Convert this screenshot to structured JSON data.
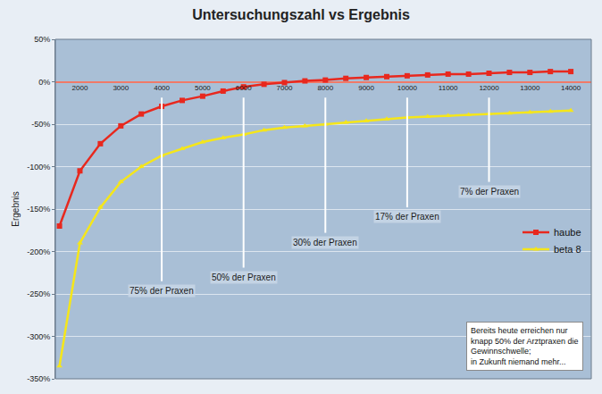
{
  "chart_data": {
    "type": "line",
    "title": "Untersuchungszahl vs Ergebnis",
    "y_label": "Ergebnis",
    "x": [
      1500,
      2000,
      2500,
      3000,
      3500,
      4000,
      4500,
      5000,
      5500,
      6000,
      6500,
      7000,
      7500,
      8000,
      8500,
      9000,
      9500,
      10000,
      10500,
      11000,
      11500,
      12000,
      12500,
      13000,
      13500,
      14000
    ],
    "series": [
      {
        "name": "haube",
        "color": "#e8281e",
        "marker": "square",
        "values": [
          -170,
          -105,
          -73,
          -52,
          -38,
          -29,
          -22,
          -17,
          -11,
          -6,
          -3,
          -1,
          1,
          2,
          4,
          5,
          6,
          7,
          8,
          9,
          9,
          10,
          11,
          11,
          12,
          12
        ]
      },
      {
        "name": "beta 8",
        "color": "#f5e61a",
        "marker": "triangle-up",
        "values": [
          -335,
          -190,
          -148,
          -118,
          -100,
          -87,
          -79,
          -71,
          -66,
          -62,
          -57,
          -54,
          -52,
          -50,
          -48,
          -46,
          -44,
          -42,
          -41,
          -40,
          -39,
          -38,
          -37,
          -36,
          -35,
          -34
        ]
      }
    ],
    "xlim": [
      1400,
      14500
    ],
    "xticks": [
      2000,
      3000,
      4000,
      5000,
      6000,
      7000,
      8000,
      9000,
      10000,
      11000,
      12000,
      13000,
      14000
    ],
    "ylim": [
      -350,
      50
    ],
    "yticks": [
      {
        "value": -350,
        "label": "-350%"
      },
      {
        "value": -300,
        "label": "-300%"
      },
      {
        "value": -250,
        "label": "-250%"
      },
      {
        "value": -200,
        "label": "-200%"
      },
      {
        "value": -150,
        "label": "-150%"
      },
      {
        "value": -100,
        "label": "-100%"
      },
      {
        "value": -50,
        "label": "-50%"
      },
      {
        "value": 0,
        "label": "0%"
      },
      {
        "value": 50,
        "label": "50%"
      }
    ],
    "grid": "y",
    "legend": "right",
    "annotations": [
      {
        "text": "75% der Praxen",
        "x": 4000,
        "y": -235
      },
      {
        "text": "50% der Praxen",
        "x": 6000,
        "y": -219
      },
      {
        "text": "30% der Praxen",
        "x": 8000,
        "y": -178
      },
      {
        "text": "17% der Praxen",
        "x": 10000,
        "y": -148
      },
      {
        "text": "7% der Praxen",
        "x": 12000,
        "y": -118
      }
    ],
    "note": [
      "Bereits heute erreichen nur",
      "knapp 50% der Arztpraxen die",
      "Gewinnschwelle;",
      "in Zukunft niemand mehr..."
    ]
  }
}
